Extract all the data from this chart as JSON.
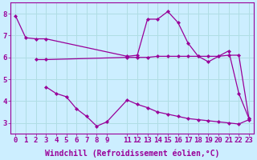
{
  "line1_x": [
    0,
    1,
    2,
    3,
    11,
    12,
    13,
    14,
    15,
    16,
    17,
    18,
    19,
    20,
    21,
    22,
    23
  ],
  "line1_y": [
    7.9,
    6.9,
    6.85,
    6.85,
    6.05,
    6.1,
    7.75,
    7.75,
    8.1,
    7.6,
    6.65,
    6.05,
    5.8,
    6.05,
    6.3,
    4.35,
    3.2
  ],
  "line2_x": [
    2,
    3,
    11,
    12,
    13,
    14,
    15,
    16,
    17,
    18,
    19,
    20,
    21,
    22,
    23
  ],
  "line2_y": [
    5.9,
    5.9,
    6.0,
    6.0,
    6.0,
    6.05,
    6.05,
    6.05,
    6.05,
    6.05,
    6.05,
    6.05,
    6.1,
    6.1,
    3.2
  ],
  "line3_x": [
    3,
    4,
    5,
    6,
    7,
    8,
    9,
    11,
    12,
    13,
    14,
    15,
    16,
    17,
    18,
    19,
    20,
    21,
    22,
    23
  ],
  "line3_y": [
    4.65,
    4.35,
    4.2,
    3.65,
    3.3,
    2.85,
    3.05,
    4.05,
    3.85,
    3.7,
    3.5,
    3.4,
    3.3,
    3.2,
    3.15,
    3.1,
    3.05,
    3.0,
    2.95,
    3.15
  ],
  "line_color": "#990099",
  "bg_color": "#cceeff",
  "grid_color": "#b0dde4",
  "xlabel": "Windchill (Refroidissement éolien,°C)",
  "xlabel_color": "#990099",
  "xtick_positions": [
    0,
    1,
    2,
    3,
    4,
    5,
    6,
    7,
    8,
    9,
    11,
    12,
    13,
    14,
    15,
    16,
    17,
    18,
    19,
    20,
    21,
    22,
    23
  ],
  "xtick_labels": [
    "0",
    "1",
    "2",
    "3",
    "4",
    "5",
    "6",
    "7",
    "8",
    "9",
    "11",
    "12",
    "13",
    "14",
    "15",
    "16",
    "17",
    "18",
    "19",
    "20",
    "21",
    "22",
    "23"
  ],
  "yticks": [
    3,
    4,
    5,
    6,
    7,
    8
  ],
  "xlim": [
    -0.5,
    23.5
  ],
  "ylim": [
    2.5,
    8.5
  ],
  "tick_font_size": 6.5,
  "xlabel_font_size": 7.0
}
